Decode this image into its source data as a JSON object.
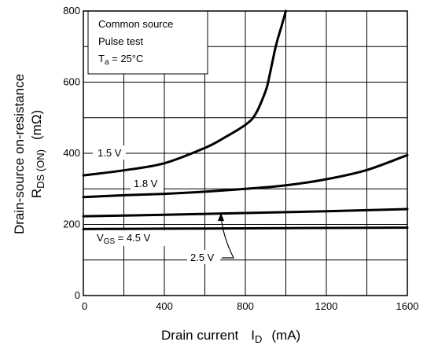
{
  "chart_data": {
    "type": "line",
    "xlabel": {
      "main": "Drain current",
      "symbol": "I",
      "sub": "D",
      "unit": "(mA)"
    },
    "ylabel": {
      "line1": "Drain-source on-resistance",
      "symbol": "R",
      "sub": "DS (ON)",
      "unit": "(mΩ)"
    },
    "xlim": [
      0,
      1600
    ],
    "ylim": [
      0,
      800
    ],
    "x_ticks": [
      0,
      400,
      800,
      1200,
      1600
    ],
    "y_ticks": [
      0,
      200,
      400,
      600,
      800
    ],
    "x_tick_labels": [
      "0",
      "400",
      "800",
      "1200",
      "1600"
    ],
    "y_tick_labels": [
      "0",
      "200",
      "400",
      "600",
      "800"
    ],
    "grid": true,
    "conditions": {
      "line1": "Common source",
      "line2": "Pulse test",
      "ta_symbol": "T",
      "ta_sub": "a",
      "ta_value": " = 25°C"
    },
    "series": [
      {
        "name": "1.5 V",
        "x": [
          0,
          200,
          400,
          600,
          700,
          800,
          850,
          900,
          920,
          950,
          980,
          1000
        ],
        "y": [
          338,
          352,
          372,
          415,
          445,
          480,
          510,
          575,
          620,
          700,
          760,
          800
        ]
      },
      {
        "name": "1.8 V",
        "x": [
          0,
          200,
          400,
          600,
          800,
          1000,
          1200,
          1400,
          1600
        ],
        "y": [
          277,
          282,
          286,
          292,
          300,
          310,
          327,
          353,
          395
        ]
      },
      {
        "name": "2.5 V",
        "x": [
          0,
          400,
          800,
          1200,
          1600
        ],
        "y": [
          223,
          227,
          232,
          237,
          243
        ]
      },
      {
        "name": "VGS = 4.5 V",
        "x": [
          0,
          400,
          800,
          1200,
          1600
        ],
        "y": [
          187,
          188,
          189,
          190,
          191
        ]
      }
    ],
    "labels": {
      "s15": "1.5 V",
      "s18": "1.8 V",
      "s25": "2.5 V",
      "vgs_symbol": "V",
      "vgs_sub": "GS",
      "vgs_value": " = 4.5 V"
    }
  }
}
